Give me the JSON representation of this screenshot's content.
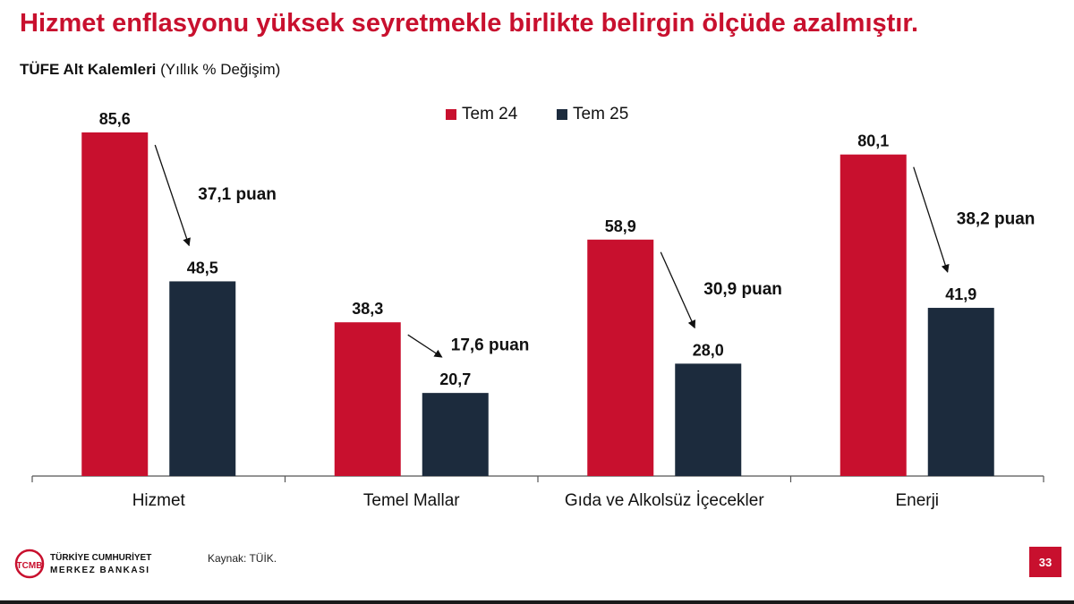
{
  "slide": {
    "title": "Hizmet enflasyonu yüksek seyretmekle birlikte belirgin ölçüde azalmıştır.",
    "subtitle_bold": "TÜFE Alt Kalemleri",
    "subtitle_normal": "(Yıllık % Değişim)",
    "source": "Kaynak: TÜİK.",
    "page_number": "33",
    "logo": {
      "monogram": "TCMB",
      "line1": "TÜRKİYE CUMHURİYET",
      "line2": "MERKEZ BANKASI"
    }
  },
  "colors": {
    "title": "#c8102e",
    "tem24": "#c8102e",
    "tem25": "#1c2b3d",
    "page_badge": "#c8102e"
  },
  "chart_data": {
    "type": "bar",
    "categories": [
      "Hizmet",
      "Temel Mallar",
      "Gıda ve Alkolsüz İçecekler",
      "Enerji"
    ],
    "series": [
      {
        "name": "Tem 24",
        "values": [
          85.6,
          38.3,
          58.9,
          80.1
        ],
        "labels": [
          "85,6",
          "38,3",
          "58,9",
          "80,1"
        ]
      },
      {
        "name": "Tem 25",
        "values": [
          48.5,
          20.7,
          28.0,
          41.9
        ],
        "labels": [
          "48,5",
          "20,7",
          "28,0",
          "41,9"
        ]
      }
    ],
    "annotations": [
      "37,1 puan",
      "17,6 puan",
      "30,9 puan",
      "38,2 puan"
    ],
    "ylim": [
      0,
      85.6
    ],
    "grid": false,
    "legend": "top-center"
  }
}
